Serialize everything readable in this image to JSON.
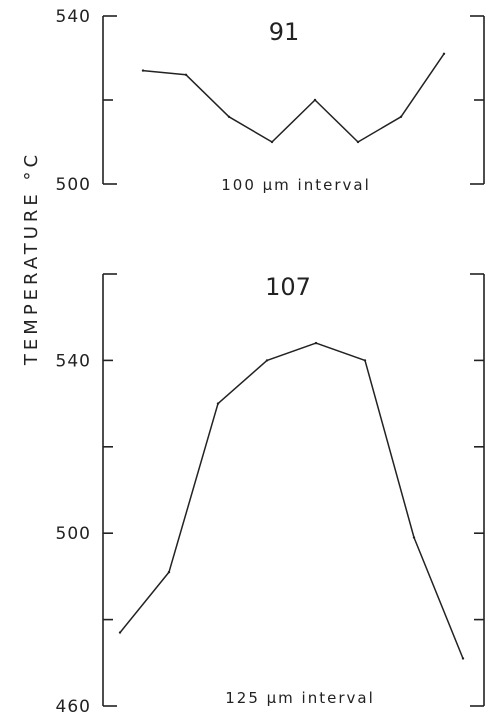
{
  "chart_data": {
    "type": "line",
    "ylabel": "TEMPERATURE °C",
    "panels": [
      {
        "title": "91",
        "annotation": "100 µm interval",
        "ylim": [
          500,
          540
        ],
        "yticks": [
          500,
          540
        ],
        "x": [
          1,
          2,
          3,
          4,
          5,
          6,
          7,
          8
        ],
        "values": [
          527,
          526,
          516,
          510,
          520,
          510,
          516,
          531
        ]
      },
      {
        "title": "107",
        "annotation": "125 µm interval",
        "ylim": [
          460,
          560
        ],
        "yticks": [
          460,
          500,
          540
        ],
        "x": [
          1,
          2,
          3,
          4,
          5,
          6,
          7,
          8
        ],
        "values": [
          477,
          491,
          530,
          540,
          544,
          540,
          499,
          471
        ]
      }
    ]
  }
}
